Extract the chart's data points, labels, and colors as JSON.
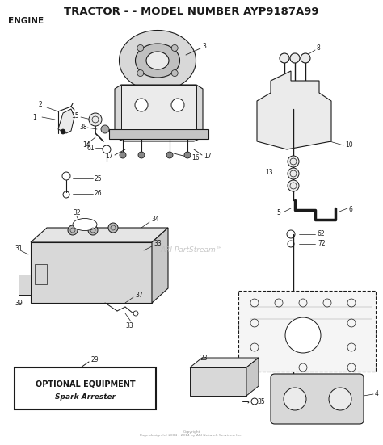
{
  "title": "TRACTOR - - MODEL NUMBER AYP9187A99",
  "subtitle": "ENGINE",
  "watermark": "ARI PartStream™",
  "copyright": "Copyright\nPage design (c) 2004 - 2014 by ARI Network Services, Inc.",
  "bg_color": "#ffffff",
  "title_fontsize": 9.5,
  "subtitle_fontsize": 7.5,
  "optional_box_text1": "OPTIONAL EQUIPMENT",
  "optional_box_text2": "Spark Arrester"
}
